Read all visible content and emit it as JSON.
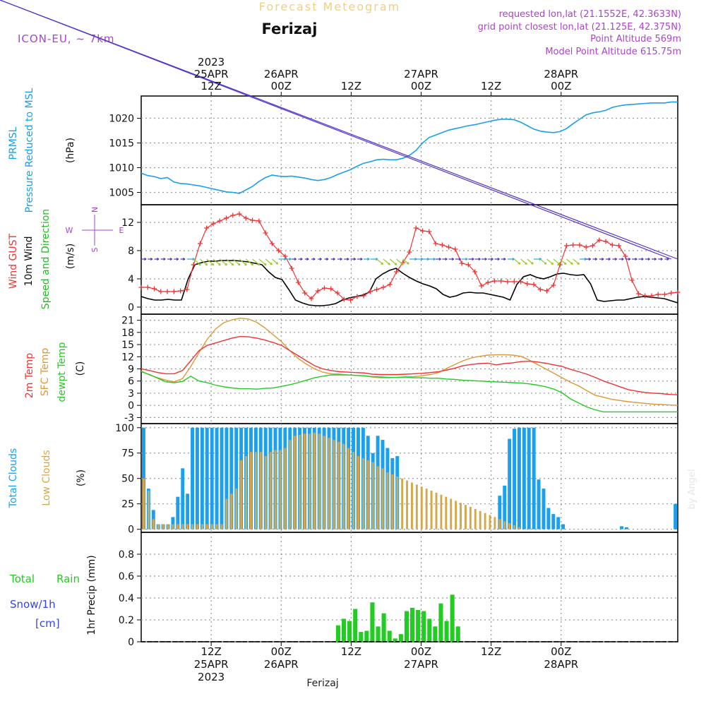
{
  "header": {
    "title": "Forecast Meteogram",
    "location": "Ferizaj",
    "model": "ICON-EU, ~ 7km",
    "requested": "requested lon,lat (21.1552E, 42.3633N)",
    "grid_point": "grid point closest lon,lat (21.125E, 42.375N)",
    "point_altitude": "Point Altitude 569m",
    "model_altitude": "Model Point Altitude 615.75m"
  },
  "footer": {
    "location": "Ferizaj",
    "credit": "by Angel"
  },
  "colors": {
    "pressure": "#1aa0e8",
    "gust": "#ee3333",
    "wind": "#000000",
    "dir_label": "#22bb22",
    "temp2m": "#ee3333",
    "sfc": "#dd9933",
    "dew": "#22cc22",
    "total_clouds": "#1aa0ee",
    "low_clouds": "#d4a84a",
    "rain": "#22cc22",
    "snow": "#3344ee",
    "compass": "#aa44cc"
  },
  "chart_data": {
    "type": "meteogram",
    "time_axis": {
      "start_hour": 0,
      "end_hour": 92,
      "unit": "hours from 25APR 00Z",
      "top_ticks": [
        {
          "hour": 12,
          "lines": [
            "2023",
            "25APR",
            "12Z"
          ]
        },
        {
          "hour": 24,
          "lines": [
            "26APR",
            "00Z"
          ]
        },
        {
          "hour": 36,
          "lines": [
            "12Z"
          ]
        },
        {
          "hour": 48,
          "lines": [
            "27APR",
            "00Z"
          ]
        },
        {
          "hour": 60,
          "lines": [
            "12Z"
          ]
        },
        {
          "hour": 72,
          "lines": [
            "28APR",
            "00Z"
          ]
        }
      ],
      "bottom_ticks": [
        {
          "hour": 12,
          "lines": [
            "12Z",
            "25APR",
            "2023"
          ]
        },
        {
          "hour": 24,
          "lines": [
            "00Z",
            "26APR"
          ]
        },
        {
          "hour": 36,
          "lines": [
            "12Z"
          ]
        },
        {
          "hour": 48,
          "lines": [
            "00Z",
            "27APR"
          ]
        },
        {
          "hour": 60,
          "lines": [
            "12Z"
          ]
        },
        {
          "hour": 72,
          "lines": [
            "00Z",
            "28APR"
          ]
        }
      ]
    },
    "pressure": {
      "labels": [
        "PRMSL",
        "Pressure Reduced to MSL"
      ],
      "unit": "(hPa)",
      "ylim": [
        1002.5,
        1024.5
      ],
      "ticks": [
        1005,
        1010,
        1015,
        1020
      ],
      "series": [
        1008.9,
        1008.4,
        1008.2,
        1007.8,
        1008.0,
        1007.1,
        1006.8,
        1006.7,
        1006.5,
        1006.3,
        1006.0,
        1005.7,
        1005.4,
        1005.1,
        1005.0,
        1004.8,
        1005.5,
        1006.2,
        1007.2,
        1008.0,
        1008.5,
        1008.3,
        1008.2,
        1008.3,
        1008.1,
        1007.9,
        1007.6,
        1007.4,
        1007.6,
        1008.0,
        1008.6,
        1009.1,
        1009.6,
        1010.3,
        1010.9,
        1011.2,
        1011.6,
        1011.7,
        1011.6,
        1011.6,
        1011.9,
        1012.5,
        1013.5,
        1015.0,
        1016.1,
        1016.6,
        1017.1,
        1017.6,
        1017.9,
        1018.2,
        1018.5,
        1018.7,
        1019.0,
        1019.3,
        1019.6,
        1019.8,
        1019.8,
        1019.7,
        1019.2,
        1018.5,
        1017.8,
        1017.4,
        1017.2,
        1017.1,
        1017.3,
        1017.9,
        1018.9,
        1019.8,
        1020.7,
        1021.1,
        1021.3,
        1021.6,
        1022.2,
        1022.5,
        1022.7,
        1022.8,
        1022.9,
        1023.0,
        1023.1,
        1023.1,
        1023.1,
        1023.3,
        1023.3
      ]
    },
    "wind": {
      "labels": [
        "Wind GUST",
        "10m Wind",
        "Speed and Direction"
      ],
      "unit": "(m/s)",
      "ylim": [
        -1,
        14.5
      ],
      "ticks": [
        0,
        4,
        8,
        12
      ],
      "compass": {
        "n": "N",
        "e": "E",
        "s": "S",
        "w": "W"
      },
      "gust": [
        2.8,
        2.8,
        2.6,
        2.2,
        2.2,
        2.2,
        2.3,
        2.5,
        6.0,
        9.0,
        11.2,
        11.8,
        12.2,
        12.6,
        13.0,
        13.2,
        12.6,
        12.3,
        12.2,
        10.5,
        9.0,
        8.0,
        7.2,
        5.5,
        3.5,
        2.0,
        1.2,
        2.3,
        2.7,
        2.6,
        2.0,
        1.1,
        1.0,
        1.5,
        1.6,
        2.2,
        2.5,
        2.8,
        3.2,
        5.0,
        6.3,
        7.8,
        11.2,
        10.8,
        10.7,
        9.0,
        8.8,
        8.5,
        8.2,
        6.2,
        6.0,
        5.0,
        3.0,
        3.5,
        3.7,
        3.7,
        3.6,
        3.6,
        3.6,
        3.3,
        3.2,
        2.5,
        2.3,
        3.1,
        6.0,
        8.7,
        8.8,
        8.8,
        8.5,
        8.7,
        9.5,
        9.3,
        8.8,
        8.7,
        7.2,
        3.8,
        1.9,
        1.6,
        1.6,
        1.8,
        1.8,
        2.0,
        2.1
      ],
      "speed": [
        1.5,
        1.2,
        1.0,
        1.0,
        1.1,
        1.0,
        1.0,
        4.0,
        6.0,
        6.3,
        6.5,
        6.5,
        6.6,
        6.6,
        6.6,
        6.5,
        6.4,
        6.2,
        6.0,
        5.0,
        4.2,
        3.9,
        2.5,
        1.0,
        0.6,
        0.3,
        0.2,
        0.2,
        0.3,
        0.5,
        1.0,
        1.3,
        1.5,
        1.7,
        2.1,
        4.0,
        4.7,
        5.2,
        5.5,
        4.8,
        4.2,
        3.7,
        3.3,
        3.0,
        2.6,
        1.8,
        1.4,
        1.6,
        2.0,
        2.1,
        2.0,
        2.0,
        1.8,
        1.6,
        1.4,
        1.0,
        3.2,
        4.3,
        4.6,
        4.2,
        4.0,
        4.3,
        4.7,
        4.8,
        4.6,
        4.5,
        4.6,
        3.3,
        1.0,
        0.8,
        0.9,
        1.0,
        1.0,
        1.2,
        1.4,
        1.5,
        1.4,
        1.3,
        1.2,
        0.9,
        0.6
      ]
    },
    "temperature": {
      "labels": [
        "2m Temp",
        "SFC Temp",
        "dewpt Temp"
      ],
      "unit": "(C)",
      "ylim": [
        -4.5,
        22.5
      ],
      "ticks": [
        -3,
        0,
        3,
        6,
        9,
        12,
        15,
        18,
        21
      ],
      "t2m": [
        9.0,
        8.6,
        8.1,
        7.8,
        7.8,
        8.6,
        11.0,
        13.5,
        14.8,
        15.4,
        16.0,
        16.6,
        17.0,
        16.9,
        16.6,
        16.1,
        15.5,
        14.8,
        13.5,
        12.3,
        11.0,
        9.8,
        9.0,
        8.6,
        8.3,
        8.2,
        8.1,
        8.0,
        7.7,
        7.6,
        7.6,
        7.6,
        7.7,
        7.8,
        7.9,
        8.1,
        8.3,
        8.7,
        9.2,
        9.8,
        10.1,
        10.3,
        10.4,
        10.0,
        10.3,
        10.5,
        10.8,
        10.9,
        10.7,
        10.4,
        10.0,
        9.6,
        8.9,
        8.3,
        7.7,
        6.9,
        6.0,
        5.3,
        4.6,
        3.9,
        3.5,
        3.2,
        3.0,
        2.9,
        2.7,
        2.6
      ],
      "sfc": [
        8.5,
        7.5,
        6.8,
        6.2,
        5.8,
        6.6,
        9.6,
        13.0,
        16.3,
        18.8,
        20.4,
        21.1,
        21.5,
        21.3,
        20.5,
        19.1,
        17.4,
        15.7,
        13.5,
        11.6,
        10.2,
        9.0,
        8.2,
        7.8,
        7.7,
        7.5,
        7.4,
        7.3,
        7.0,
        6.8,
        6.8,
        6.9,
        7.0,
        7.1,
        7.3,
        7.6,
        8.1,
        9.1,
        10.1,
        11.0,
        11.7,
        12.1,
        12.4,
        12.5,
        12.5,
        12.4,
        12.1,
        11.2,
        10.1,
        9.0,
        7.9,
        6.8,
        5.7,
        4.8,
        3.6,
        2.5,
        2.0,
        1.5,
        1.2,
        0.9,
        0.7,
        0.5,
        0.3,
        0.2,
        0.1,
        0.0
      ],
      "dew": [
        8.3,
        7.6,
        6.7,
        5.8,
        5.6,
        5.9,
        7.2,
        6.0,
        5.6,
        5.0,
        4.6,
        4.3,
        4.1,
        4.1,
        4.0,
        4.2,
        4.3,
        4.7,
        5.1,
        5.6,
        6.2,
        6.8,
        7.2,
        7.5,
        7.5,
        7.5,
        7.4,
        7.3,
        7.1,
        7.0,
        6.9,
        6.9,
        7.0,
        6.8,
        6.8,
        6.7,
        6.7,
        6.5,
        6.4,
        6.2,
        6.1,
        6.0,
        5.9,
        5.8,
        5.7,
        5.6,
        5.5,
        5.3,
        5.0,
        4.6,
        4.0,
        3.1,
        1.6,
        0.6,
        -0.4,
        -1.1,
        -1.6,
        -1.6,
        -1.6,
        -1.6,
        -1.6,
        -1.6,
        -1.6,
        -1.6,
        -1.6,
        -1.6
      ]
    },
    "clouds": {
      "labels": [
        "Total Clouds",
        "Low Clouds"
      ],
      "unit": "(%)",
      "ylim": [
        -3,
        104
      ],
      "ticks": [
        0,
        25,
        50,
        75,
        100
      ],
      "total": [
        100,
        40,
        19,
        5,
        5,
        5,
        12,
        32,
        60,
        35,
        100,
        100,
        100,
        100,
        100,
        100,
        100,
        100,
        100,
        100,
        100,
        100,
        100,
        100,
        100,
        100,
        100,
        100,
        100,
        100,
        100,
        100,
        100,
        100,
        100,
        100,
        100,
        100,
        100,
        100,
        100,
        100,
        100,
        100,
        100,
        100,
        92,
        75,
        92,
        88,
        80,
        70,
        72,
        0,
        0,
        0,
        0,
        0,
        0,
        0,
        0,
        0,
        0,
        0,
        0,
        0,
        0,
        0,
        0,
        0,
        0,
        0,
        0,
        33,
        43,
        89,
        99,
        100,
        100,
        100,
        100,
        49,
        40,
        21,
        15,
        12,
        5,
        0,
        0,
        0,
        0,
        0,
        0,
        0,
        0,
        0,
        0,
        0,
        3,
        2,
        0,
        0,
        0,
        0,
        0,
        0,
        0,
        0,
        0,
        25
      ],
      "low": [
        50,
        38,
        10,
        5,
        5,
        5,
        5,
        5,
        5,
        5,
        5,
        5,
        5,
        5,
        5,
        5,
        5,
        30,
        35,
        40,
        68,
        72,
        76,
        76,
        76,
        72,
        76,
        78,
        78,
        80,
        88,
        92,
        93,
        94,
        94,
        95,
        94,
        92,
        90,
        88,
        86,
        84,
        80,
        76,
        72,
        70,
        68,
        66,
        62,
        60,
        56,
        54,
        52,
        50,
        48,
        46,
        44,
        42,
        40,
        38,
        36,
        34,
        32,
        30,
        28,
        26,
        24,
        22,
        20,
        18,
        16,
        14,
        12,
        10,
        8,
        6,
        4,
        2,
        0,
        0,
        0,
        0,
        0,
        0,
        0,
        0,
        0,
        0,
        0,
        0,
        0,
        0,
        0,
        0,
        0,
        0,
        0,
        0,
        0,
        0,
        0,
        0,
        0,
        0,
        0,
        0,
        0,
        0,
        0,
        0,
        0,
        0,
        0,
        0,
        0,
        0
      ]
    },
    "precip": {
      "labels": [
        "Total",
        "Rain",
        "Snow/1h",
        "[cm]",
        "1hr Precip (mm)"
      ],
      "ylim": [
        0,
        1.0
      ],
      "ticks": [
        0,
        0.2,
        0.4,
        0.6,
        0.8
      ],
      "tick_labels": [
        "0",
        "0.2",
        "0.4",
        "0.6",
        "0.8"
      ],
      "rain": [
        0,
        0,
        0,
        0,
        0,
        0,
        0,
        0,
        0,
        0,
        0,
        0,
        0,
        0,
        0,
        0,
        0,
        0,
        0,
        0,
        0,
        0,
        0,
        0,
        0,
        0,
        0,
        0,
        0,
        0,
        0,
        0,
        0,
        0,
        0.15,
        0.21,
        0.19,
        0.3,
        0.09,
        0.1,
        0.36,
        0.14,
        0.26,
        0.1,
        0.03,
        0.07,
        0.28,
        0.31,
        0.29,
        0.28,
        0.21,
        0.14,
        0.35,
        0.19,
        0.43,
        0.14,
        0,
        0,
        0,
        0,
        0,
        0,
        0,
        0,
        0,
        0,
        0,
        0,
        0,
        0,
        0,
        0,
        0,
        0,
        0,
        0,
        0,
        0,
        0,
        0,
        0,
        0,
        0,
        0,
        0,
        0,
        0,
        0,
        0,
        0,
        0,
        0,
        0,
        0
      ]
    }
  }
}
